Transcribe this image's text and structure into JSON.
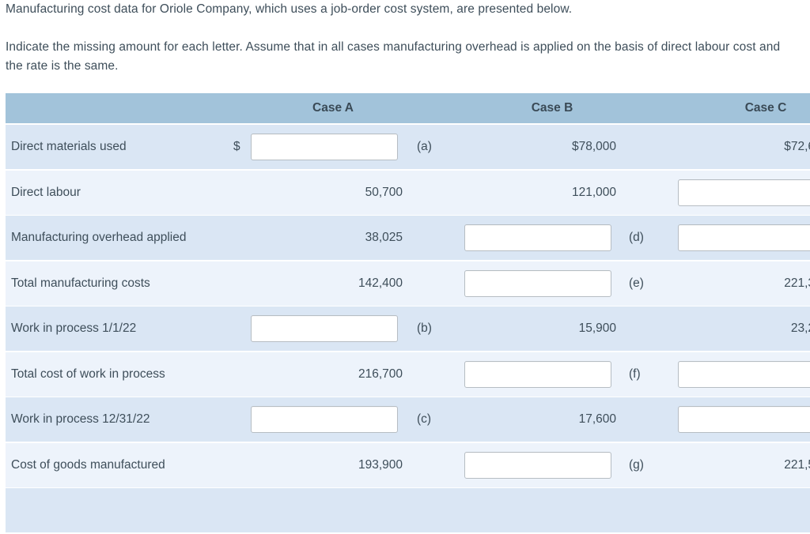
{
  "intro": {
    "paragraph1": "Manufacturing cost data for Oriole Company, which uses a job-order cost system, are presented below.",
    "paragraph2": "Indicate the missing amount for each letter. Assume that in all cases manufacturing overhead is applied on the basis of direct labour cost and the rate is the same."
  },
  "table": {
    "columns": [
      "Case A",
      "Case B",
      "Case C"
    ],
    "rows": [
      {
        "label": "Direct materials used",
        "currency": "$",
        "caseA": {
          "letter": "(a)"
        },
        "caseB": {
          "value": "$78,000"
        },
        "caseC": {
          "value": "$72,6"
        }
      },
      {
        "label": "Direct labour",
        "caseA": {
          "value": "50,700"
        },
        "caseB": {
          "value": "121,000"
        },
        "caseC": {}
      },
      {
        "label": "Manufacturing overhead applied",
        "caseA": {
          "value": "38,025"
        },
        "caseB": {
          "letter": "(d)"
        },
        "caseC": {}
      },
      {
        "label": "Total manufacturing costs",
        "caseA": {
          "value": "142,400"
        },
        "caseB": {
          "letter": "(e)"
        },
        "caseC": {
          "value": "221,3"
        }
      },
      {
        "label": "Work in process 1/1/22",
        "caseA": {
          "letter": "(b)"
        },
        "caseB": {
          "value": "15,900"
        },
        "caseC": {
          "value": "23,2"
        }
      },
      {
        "label": "Total cost of work in process",
        "caseA": {
          "value": "216,700"
        },
        "caseB": {
          "letter": "(f)"
        },
        "caseC": {}
      },
      {
        "label": "Work in process 12/31/22",
        "caseA": {
          "letter": "(c)"
        },
        "caseB": {
          "value": "17,600"
        },
        "caseC": {}
      },
      {
        "label": "Cost of goods manufactured",
        "caseA": {
          "value": "193,900"
        },
        "caseB": {
          "letter": "(g)"
        },
        "caseC": {
          "value": "221,5"
        }
      }
    ]
  },
  "colors": {
    "header_bg": "#a2c3da",
    "row_odd_bg": "#dae6f4",
    "row_even_bg": "#edf3fb",
    "text": "#3e4e5a",
    "input_border": "#b6bdc3"
  }
}
